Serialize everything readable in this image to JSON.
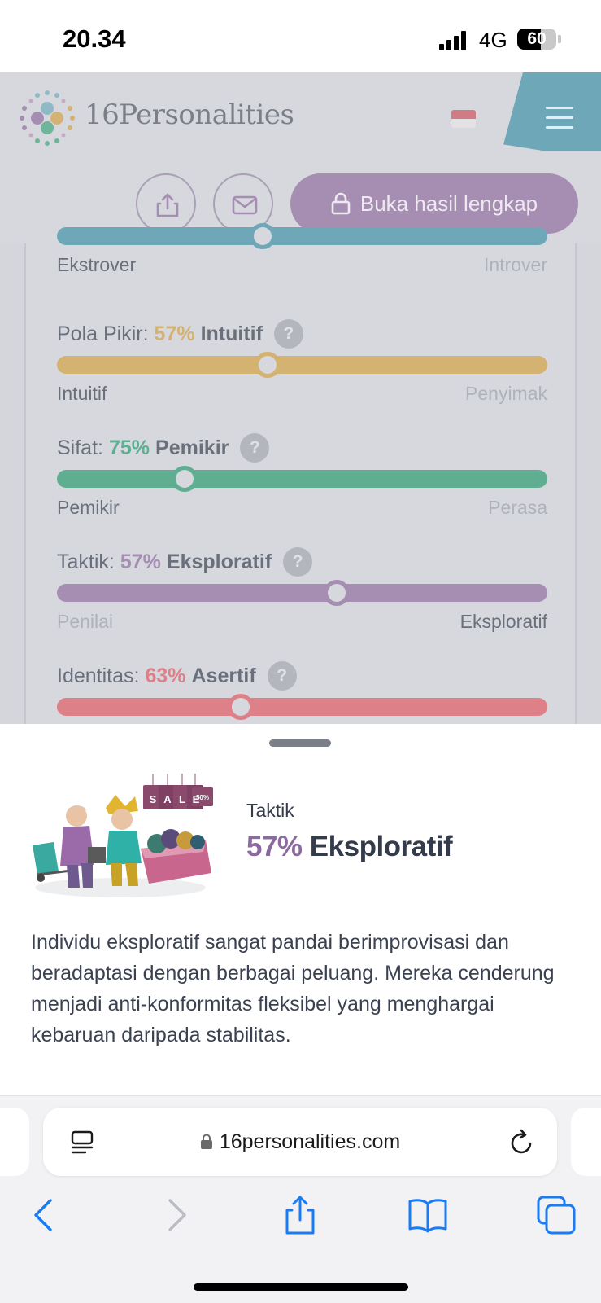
{
  "status_bar": {
    "time": "20.34",
    "network": "4G",
    "battery": "60",
    "battery_level": 0.6
  },
  "header": {
    "logo_text": "16Personalities",
    "unlock_label": "Buka hasil lengkap"
  },
  "traits": [
    {
      "title": "",
      "pct": "",
      "name": "",
      "color": "#6ea7b8",
      "knob_fraction": 0.42,
      "left_label": "Ekstrover",
      "right_label": "Introver",
      "left_active": true
    },
    {
      "title": "Pola Pikir:",
      "pct": "57%",
      "name": "Intuitif",
      "color": "#d3b272",
      "knob_fraction": 0.43,
      "left_label": "Intuitif",
      "right_label": "Penyimak",
      "left_active": true
    },
    {
      "title": "Sifat:",
      "pct": "75%",
      "name": "Pemikir",
      "color": "#5fae91",
      "knob_fraction": 0.26,
      "left_label": "Pemikir",
      "right_label": "Perasa",
      "left_active": true
    },
    {
      "title": "Taktik:",
      "pct": "57%",
      "name": "Eksploratif",
      "color": "#a58eb2",
      "knob_fraction": 0.57,
      "left_label": "Penilai",
      "right_label": "Eksploratif",
      "left_active": false
    },
    {
      "title": "Identitas:",
      "pct": "63%",
      "name": "Asertif",
      "color": "#dd8088",
      "knob_fraction": 0.375,
      "left_label": "",
      "right_label": "",
      "left_active": true
    }
  ],
  "sheet": {
    "label": "Taktik",
    "pct": "57%",
    "name": "Eksploratif",
    "sale_letters": [
      "S",
      "A",
      "L",
      "E"
    ],
    "sale_badge": "50%",
    "description": "Individu eksploratif sangat pandai berimprovisasi dan beradaptasi dengan berbagai peluang. Mereka cenderung menjadi anti-konformitas fleksibel yang menghargai kebaruan daripada stabilitas."
  },
  "browser": {
    "url": "16personalities.com"
  },
  "colors": {
    "accent_purple": "#8b6a9f",
    "ios_blue": "#1a7cf5"
  }
}
